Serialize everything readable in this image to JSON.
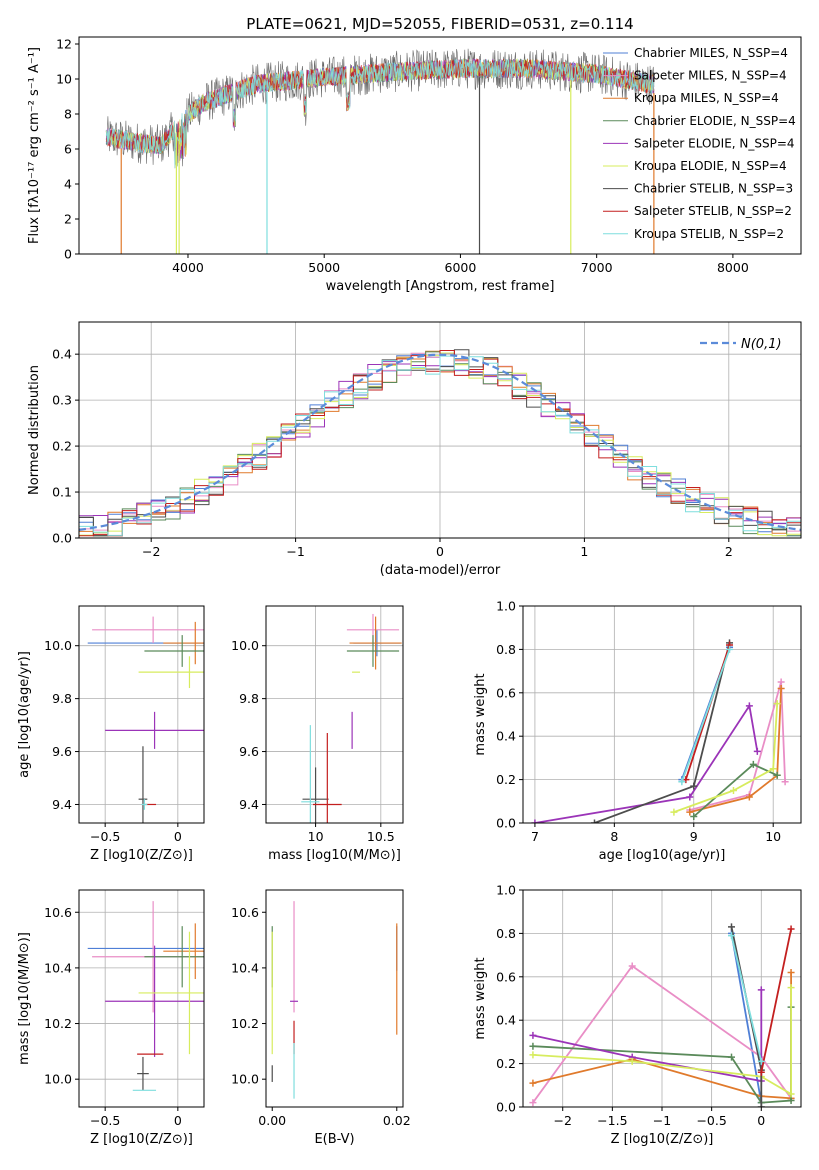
{
  "figure_title": "PLATE=0621, MJD=52055, FIBERID=0531, z=0.114",
  "palette": [
    "#4f7fd6",
    "#e98ec6",
    "#e07a2c",
    "#5a8a5a",
    "#9b34b8",
    "#d7ec5e",
    "#4d4d4d",
    "#c31f1f",
    "#7fdede"
  ],
  "chart_data": [
    {
      "id": "spectrum",
      "type": "line",
      "title": "PLATE=0621, MJD=52055, FIBERID=0531, z=0.114",
      "xlabel": "wavelength [Angstrom, rest frame]",
      "ylabel": "Flux [fλ10⁻¹⁷ erg cm⁻² s⁻¹ A⁻¹]",
      "xlim": [
        3200,
        8500
      ],
      "ylim": [
        0,
        12.4
      ],
      "xticks": [
        4000,
        5000,
        6000,
        7000,
        8000
      ],
      "yticks": [
        0,
        2,
        4,
        6,
        8,
        10,
        12
      ],
      "grid": false,
      "legend": "top-right",
      "series": [
        {
          "name": "Chabrier MILES, N_SSP=4"
        },
        {
          "name": "Salpeter MILES, N_SSP=4"
        },
        {
          "name": "Kroupa MILES, N_SSP=4"
        },
        {
          "name": "Chabrier ELODIE, N_SSP=4"
        },
        {
          "name": "Salpeter ELODIE, N_SSP=4"
        },
        {
          "name": "Kroupa ELODIE, N_SSP=4"
        },
        {
          "name": "Chabrier STELIB, N_SSP=3"
        },
        {
          "name": "Salpeter STELIB, N_SSP=2"
        },
        {
          "name": "Kroupa STELIB, N_SSP=2"
        }
      ],
      "continuum": {
        "x": [
          3400,
          3600,
          3800,
          3950,
          4100,
          4500,
          5000,
          5500,
          6000,
          6500,
          7000,
          7200,
          7400
        ],
        "y": [
          6.7,
          6.4,
          6.2,
          7.6,
          8.6,
          9.7,
          10.1,
          10.4,
          10.6,
          10.6,
          10.3,
          10.0,
          9.7
        ]
      },
      "absorption_lines": [
        3510,
        3915,
        3935,
        4580,
        6140,
        6810,
        7420
      ]
    },
    {
      "id": "residuals",
      "type": "histogram",
      "xlabel": "(data-model)/error",
      "ylabel": "Normed distribution",
      "xlim": [
        -2.5,
        2.5
      ],
      "ylim": [
        0,
        0.47
      ],
      "xticks": [
        -2,
        -1,
        0,
        1,
        2
      ],
      "yticks": [
        0.0,
        0.1,
        0.2,
        0.3,
        0.4
      ],
      "grid": true,
      "legend": "top-right",
      "curve_label": "N(0,1)",
      "bin_width": 0.1
    },
    {
      "id": "age-vs-Z",
      "type": "errorbar",
      "xlabel": "Z [log10(Z/Z⊙)]",
      "ylabel": "age [log10(age/yr)]",
      "xlim": [
        -0.68,
        0.18
      ],
      "ylim": [
        9.33,
        10.15
      ],
      "xticks": [
        -0.5,
        0.0
      ],
      "yticks": [
        9.4,
        9.6,
        9.8,
        10.0
      ],
      "grid": true,
      "points": [
        {
          "x": 0.0,
          "y": 10.01,
          "xerr": 0.62,
          "yerr": 0.0
        },
        {
          "x": -0.17,
          "y": 10.06,
          "xerr": 0.42,
          "yerr": 0.05
        },
        {
          "x": 0.12,
          "y": 10.01,
          "xerr": 0.22,
          "yerr": 0.08
        },
        {
          "x": 0.03,
          "y": 9.98,
          "xerr": 0.26,
          "yerr": 0.06
        },
        {
          "x": -0.16,
          "y": 9.68,
          "xerr": 0.34,
          "yerr": 0.07
        },
        {
          "x": 0.08,
          "y": 9.9,
          "xerr": 0.35,
          "yerr": 0.06
        },
        {
          "x": -0.24,
          "y": 9.42,
          "xerr": 0.03,
          "yerr": 0.2
        },
        {
          "x": -0.19,
          "y": 9.4,
          "xerr": 0.04,
          "yerr": 0.0
        },
        {
          "x": -0.23,
          "y": 9.4,
          "xerr": 0.02,
          "yerr": 0.02
        }
      ]
    },
    {
      "id": "age-vs-mass",
      "type": "errorbar",
      "xlabel": "mass [log10(M/M⊙)]",
      "ylabel": "",
      "xlim": [
        9.62,
        10.67
      ],
      "ylim": [
        9.33,
        10.15
      ],
      "xticks": [
        10.0,
        10.5
      ],
      "yticks": [
        9.4,
        9.6,
        9.8,
        10.0
      ],
      "grid": true,
      "points": [
        {
          "x": 10.47,
          "y": 10.01,
          "xerr": 0.18,
          "yerr": 0.05
        },
        {
          "x": 10.44,
          "y": 10.06,
          "xerr": 0.2,
          "yerr": 0.06
        },
        {
          "x": 10.46,
          "y": 10.01,
          "xerr": 0.2,
          "yerr": 0.1
        },
        {
          "x": 10.44,
          "y": 9.98,
          "xerr": 0.2,
          "yerr": 0.06
        },
        {
          "x": 10.28,
          "y": 9.68,
          "xerr": 0.0,
          "yerr": 0.07
        },
        {
          "x": 10.31,
          "y": 9.9,
          "xerr": 0.0,
          "yerr": 0.0
        },
        {
          "x": 10.0,
          "y": 9.42,
          "xerr": 0.1,
          "yerr": 0.12
        },
        {
          "x": 10.09,
          "y": 9.4,
          "xerr": 0.11,
          "yerr": 0.27
        },
        {
          "x": 9.96,
          "y": 9.41,
          "xerr": 0.07,
          "yerr": 0.29
        }
      ]
    },
    {
      "id": "mass-weight-vs-age",
      "type": "line",
      "xlabel": "age [log10(age/yr)]",
      "ylabel": "mass weight",
      "xlim": [
        6.85,
        10.35
      ],
      "ylim": [
        0,
        1
      ],
      "xticks": [
        7,
        8,
        9,
        10
      ],
      "yticks": [
        0.0,
        0.2,
        0.4,
        0.6,
        0.8,
        1.0
      ],
      "grid": true,
      "series": [
        {
          "x": [
            8.85,
            9.45
          ],
          "y": [
            0.2,
            0.81
          ]
        },
        {
          "x": [
            8.95,
            9.7,
            10.1,
            10.15
          ],
          "y": [
            0.06,
            0.13,
            0.65,
            0.19
          ]
        },
        {
          "x": [
            8.95,
            9.7,
            10.05,
            10.1
          ],
          "y": [
            0.05,
            0.12,
            0.22,
            0.62
          ]
        },
        {
          "x": [
            9.0,
            9.75,
            10.05
          ],
          "y": [
            0.03,
            0.27,
            0.22
          ]
        },
        {
          "x": [
            7.0,
            8.95,
            9.7,
            9.8
          ],
          "y": [
            0.0,
            0.12,
            0.54,
            0.33
          ]
        },
        {
          "x": [
            8.75,
            9.5,
            10.0,
            10.05
          ],
          "y": [
            0.05,
            0.15,
            0.25,
            0.55
          ]
        },
        {
          "x": [
            7.75,
            9.0,
            9.45
          ],
          "y": [
            0.0,
            0.17,
            0.83
          ]
        },
        {
          "x": [
            8.9,
            9.45
          ],
          "y": [
            0.2,
            0.82
          ]
        },
        {
          "x": [
            8.85,
            9.45
          ],
          "y": [
            0.19,
            0.8
          ]
        }
      ]
    },
    {
      "id": "mass-vs-Z",
      "type": "errorbar",
      "xlabel": "Z [log10(Z/Z⊙)]",
      "ylabel": "mass [log10(M/M⊙)]",
      "xlim": [
        -0.68,
        0.18
      ],
      "ylim": [
        9.9,
        10.68
      ],
      "xticks": [
        -0.5,
        0.0
      ],
      "yticks": [
        10.0,
        10.2,
        10.4,
        10.6
      ],
      "grid": true,
      "points": [
        {
          "x": 0.0,
          "y": 10.47,
          "xerr": 0.62,
          "yerr": 0.0
        },
        {
          "x": -0.17,
          "y": 10.44,
          "xerr": 0.42,
          "yerr": 0.2
        },
        {
          "x": 0.12,
          "y": 10.46,
          "xerr": 0.22,
          "yerr": 0.1
        },
        {
          "x": 0.03,
          "y": 10.44,
          "xerr": 0.26,
          "yerr": 0.11
        },
        {
          "x": -0.16,
          "y": 10.28,
          "xerr": 0.34,
          "yerr": 0.2
        },
        {
          "x": 0.08,
          "y": 10.31,
          "xerr": 0.35,
          "yerr": 0.22
        },
        {
          "x": -0.24,
          "y": 10.02,
          "xerr": 0.04,
          "yerr": 0.06
        },
        {
          "x": -0.19,
          "y": 10.09,
          "xerr": 0.09,
          "yerr": 0.0
        },
        {
          "x": -0.23,
          "y": 9.96,
          "xerr": 0.08,
          "yerr": 0.0
        }
      ]
    },
    {
      "id": "mass-vs-EBV",
      "type": "errorbar",
      "xlabel": "E(B-V)",
      "ylabel": "",
      "xlim": [
        -0.001,
        0.021
      ],
      "ylim": [
        9.9,
        10.68
      ],
      "xticks": [
        0.0,
        0.02
      ],
      "xtick_labels": [
        "0.00",
        "0.02"
      ],
      "yticks": [
        10.0,
        10.2,
        10.4,
        10.6
      ],
      "grid": false,
      "points": [
        {
          "x": 0.02,
          "y": 10.47,
          "xerr": 0.0,
          "yerr": 0.08
        },
        {
          "x": 0.0035,
          "y": 10.44,
          "xerr": 0.0,
          "yerr": 0.2
        },
        {
          "x": 0.02,
          "y": 10.36,
          "xerr": 0.0,
          "yerr": 0.2
        },
        {
          "x": 0.0,
          "y": 10.44,
          "xerr": 0.0,
          "yerr": 0.11
        },
        {
          "x": 0.0035,
          "y": 10.28,
          "xerr": 0.0,
          "yerr": 0.0
        },
        {
          "x": 0.0,
          "y": 10.31,
          "xerr": 0.0,
          "yerr": 0.22
        },
        {
          "x": 0.0,
          "y": 10.02,
          "xerr": 0.0,
          "yerr": 0.03
        },
        {
          "x": 0.0035,
          "y": 10.15,
          "xerr": 0.0,
          "yerr": 0.06
        },
        {
          "x": 0.0035,
          "y": 10.03,
          "xerr": 0.0,
          "yerr": 0.1
        }
      ]
    },
    {
      "id": "mass-weight-vs-Z",
      "type": "line",
      "xlabel": "Z [log10(Z/Z⊙)]",
      "ylabel": "mass weight",
      "xlim": [
        -2.4,
        0.4
      ],
      "ylim": [
        0,
        1
      ],
      "xticks": [
        -2.0,
        -1.5,
        -1.0,
        -0.5,
        0.0
      ],
      "yticks": [
        0.0,
        0.2,
        0.4,
        0.6,
        0.8,
        1.0
      ],
      "grid": true,
      "series": [
        {
          "x": [
            -0.3,
            0.0
          ],
          "y": [
            0.8,
            0.02
          ]
        },
        {
          "x": [
            -2.3,
            -1.3,
            0.0,
            0.3
          ],
          "y": [
            0.02,
            0.65,
            0.23,
            0.04
          ]
        },
        {
          "x": [
            -2.3,
            -1.3,
            0.0,
            0.3,
            0.3
          ],
          "y": [
            0.11,
            0.22,
            0.05,
            0.04,
            0.62
          ]
        },
        {
          "x": [
            -2.3,
            -0.3,
            0.0,
            0.3,
            0.3
          ],
          "y": [
            0.28,
            0.23,
            0.02,
            0.03,
            0.46
          ]
        },
        {
          "x": [
            -2.3,
            -1.3,
            0.0,
            0.0
          ],
          "y": [
            0.33,
            0.23,
            0.12,
            0.54
          ]
        },
        {
          "x": [
            -2.3,
            -1.3,
            0.0,
            0.3,
            0.3
          ],
          "y": [
            0.24,
            0.21,
            0.14,
            0.06,
            0.55
          ]
        },
        {
          "x": [
            -0.3,
            0.0,
            0.0
          ],
          "y": [
            0.83,
            0.17,
            0.0
          ]
        },
        {
          "x": [
            0.0,
            0.3
          ],
          "y": [
            0.16,
            0.82
          ]
        },
        {
          "x": [
            -0.3,
            0.0
          ],
          "y": [
            0.79,
            0.21
          ]
        }
      ]
    }
  ]
}
